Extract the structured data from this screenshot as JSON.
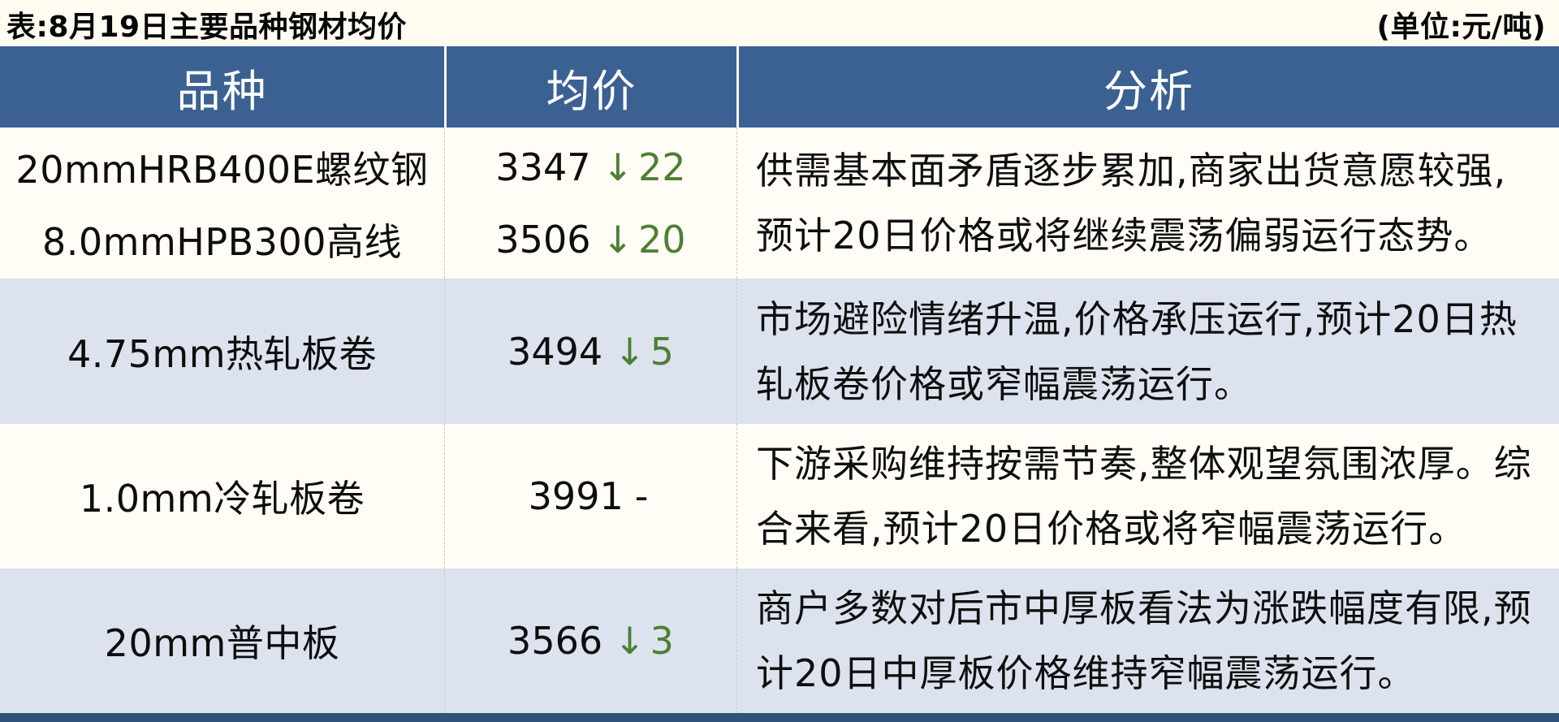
{
  "title": "表:8月19日主要品种钢材均价",
  "unit_label": "(单位:元/吨)",
  "colors": {
    "header_bg": "#3a6191",
    "row_bg": "#fffdf5",
    "row_alt_bg": "#dce3ee",
    "bottom_bar": "#2d5478",
    "down_green": "#4e7f33",
    "page_bg": "#fffcf2"
  },
  "table": {
    "headers": [
      "品种",
      "均价",
      "分析"
    ],
    "groups": [
      {
        "items": [
          {
            "variety": "20mmHRB400E螺纹钢",
            "price": "3347",
            "change_symbol": "↓",
            "change_value": "22",
            "change_style": "color:#4e7f33"
          },
          {
            "variety": "8.0mmHPB300高线",
            "price": "3506",
            "change_symbol": "↓",
            "change_value": "20",
            "change_style": "color:#4e7f33"
          }
        ],
        "analysis": "供需基本面矛盾逐步累加,商家出货意愿较强,预计20日价格或将继续震荡偏弱运行态势。"
      },
      {
        "items": [
          {
            "variety": "4.75mm热轧板卷",
            "price": "3494",
            "change_symbol": "↓",
            "change_value": "5",
            "change_style": "color:#4e7f33"
          }
        ],
        "analysis": "市场避险情绪升温,价格承压运行,预计20日热轧板卷价格或窄幅震荡运行。"
      },
      {
        "items": [
          {
            "variety": "1.0mm冷轧板卷",
            "price": "3991",
            "change_symbol": "-",
            "change_value": "",
            "change_style": "color:#141414"
          }
        ],
        "analysis": "下游采购维持按需节奏,整体观望氛围浓厚。综合来看,预计20日价格或将窄幅震荡运行。"
      },
      {
        "items": [
          {
            "variety": "20mm普中板",
            "price": "3566",
            "change_symbol": "↓",
            "change_value": "3",
            "change_style": "color:#4e7f33"
          }
        ],
        "analysis": "商户多数对后市中厚板看法为涨跌幅度有限,预计20日中厚板价格维持窄幅震荡运行。"
      }
    ]
  }
}
